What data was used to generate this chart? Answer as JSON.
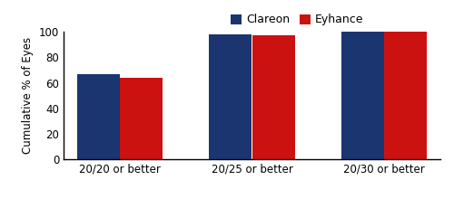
{
  "categories": [
    "20/20 or better",
    "20/25 or better",
    "20/30 or better"
  ],
  "clareon_values": [
    67,
    98,
    100
  ],
  "eyhance_values": [
    64,
    97,
    100
  ],
  "clareon_color": "#1a3570",
  "eyhance_color": "#cc1111",
  "ylabel": "Cumulative % of Eyes",
  "ylim": [
    0,
    100
  ],
  "yticks": [
    0,
    20,
    40,
    60,
    80,
    100
  ],
  "legend_labels": [
    "Clareon",
    "Eyhance"
  ],
  "bar_width": 0.42,
  "x_positions": [
    0,
    1.3,
    2.6
  ]
}
